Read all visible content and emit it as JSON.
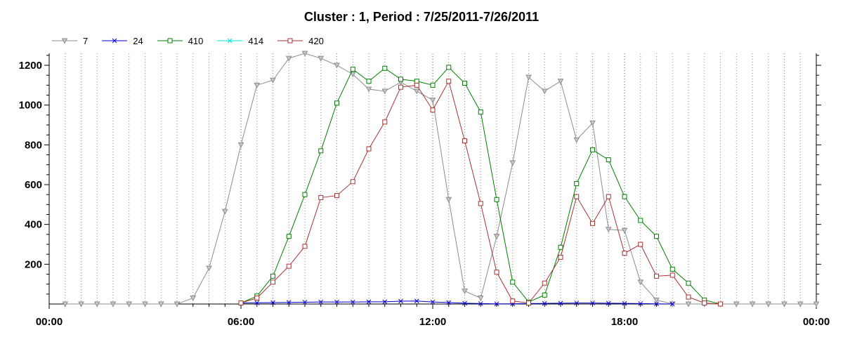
{
  "chart_data": {
    "type": "line",
    "title": "Cluster : 1, Period : 7/25/2011-7/26/2011",
    "xlabel": "",
    "ylabel": "",
    "x_unit": "hours",
    "xlim": [
      0,
      24
    ],
    "ylim": [
      0,
      1260
    ],
    "x_ticks": [
      0,
      6,
      12,
      18,
      24
    ],
    "x_tick_labels": [
      "00:00",
      "06:00",
      "12:00",
      "18:00",
      "00:00"
    ],
    "y_ticks": [
      200,
      400,
      600,
      800,
      1000,
      1200
    ],
    "y_tick_labels": [
      "200",
      "400",
      "600",
      "800",
      "1000",
      "1200"
    ],
    "grid": "vertical dotted lines every 30 minutes",
    "legend_position": "top-left",
    "series": [
      {
        "name": "7",
        "color": "#8c8c8c",
        "marker": "triangle-down",
        "x": [
          0.5,
          1,
          1.5,
          2,
          2.5,
          3,
          3.5,
          4,
          4.5,
          5,
          5.5,
          6,
          6.5,
          7,
          7.5,
          8,
          8.5,
          9,
          9.5,
          10,
          10.5,
          11,
          11.5,
          12,
          12.5,
          13,
          13.5,
          14,
          14.5,
          15,
          15.5,
          16,
          16.5,
          17,
          17.5,
          18,
          18.5,
          19,
          19.5,
          20,
          20.5,
          21,
          21.5,
          22,
          22.5,
          23,
          23.5,
          24
        ],
        "y": [
          0,
          0,
          0,
          0,
          0,
          0,
          0,
          0,
          30,
          180,
          465,
          800,
          1100,
          1125,
          1235,
          1260,
          1235,
          1200,
          1155,
          1080,
          1070,
          1115,
          1070,
          1025,
          525,
          65,
          30,
          340,
          710,
          1140,
          1070,
          1120,
          825,
          910,
          375,
          370,
          110,
          20,
          0,
          0,
          0,
          0,
          0,
          0,
          0,
          0,
          0,
          0
        ]
      },
      {
        "name": "24",
        "color": "#0000cc",
        "marker": "x",
        "x": [
          6,
          6.5,
          7,
          7.5,
          8,
          8.5,
          9,
          9.5,
          10,
          10.5,
          11,
          11.5,
          12,
          12.5,
          13,
          13.5,
          14,
          14.5,
          15,
          15.5,
          16,
          16.5,
          17,
          17.5,
          18,
          18.5,
          19,
          19.5
        ],
        "y": [
          5,
          6,
          7,
          8,
          9,
          10,
          10,
          10,
          11,
          11,
          14,
          15,
          10,
          7,
          4,
          2,
          1,
          1,
          2,
          3,
          4,
          5,
          5,
          4,
          3,
          2,
          1,
          0
        ]
      },
      {
        "name": "410",
        "color": "#008000",
        "marker": "square",
        "x": [
          6,
          6.5,
          7,
          7.5,
          8,
          8.5,
          9,
          9.5,
          10,
          10.5,
          11,
          11.5,
          12,
          12.5,
          13,
          13.5,
          14,
          14.5,
          15,
          15.5,
          16,
          16.5,
          17,
          17.5,
          18,
          18.5,
          19,
          19.5,
          20,
          20.5,
          21
        ],
        "y": [
          5,
          40,
          140,
          340,
          550,
          770,
          1010,
          1180,
          1120,
          1185,
          1130,
          1120,
          1100,
          1190,
          1110,
          965,
          525,
          110,
          10,
          45,
          285,
          605,
          775,
          725,
          540,
          420,
          340,
          175,
          105,
          20,
          0
        ]
      },
      {
        "name": "414",
        "color": "#00e5e5",
        "marker": "x",
        "x": [],
        "y": []
      },
      {
        "name": "420",
        "color": "#a83232",
        "marker": "square",
        "x": [
          6,
          6.5,
          7,
          7.5,
          8,
          8.5,
          9,
          9.5,
          10,
          10.5,
          11,
          11.5,
          12,
          12.5,
          13,
          13.5,
          14,
          14.5,
          15,
          15.5,
          16,
          16.5,
          17,
          17.5,
          18,
          18.5,
          19,
          19.5,
          20,
          20.5,
          21
        ],
        "y": [
          5,
          30,
          110,
          190,
          290,
          535,
          545,
          615,
          780,
          915,
          1090,
          1100,
          975,
          1120,
          820,
          505,
          160,
          15,
          5,
          105,
          235,
          540,
          405,
          540,
          255,
          300,
          140,
          145,
          35,
          5,
          0
        ]
      }
    ]
  }
}
